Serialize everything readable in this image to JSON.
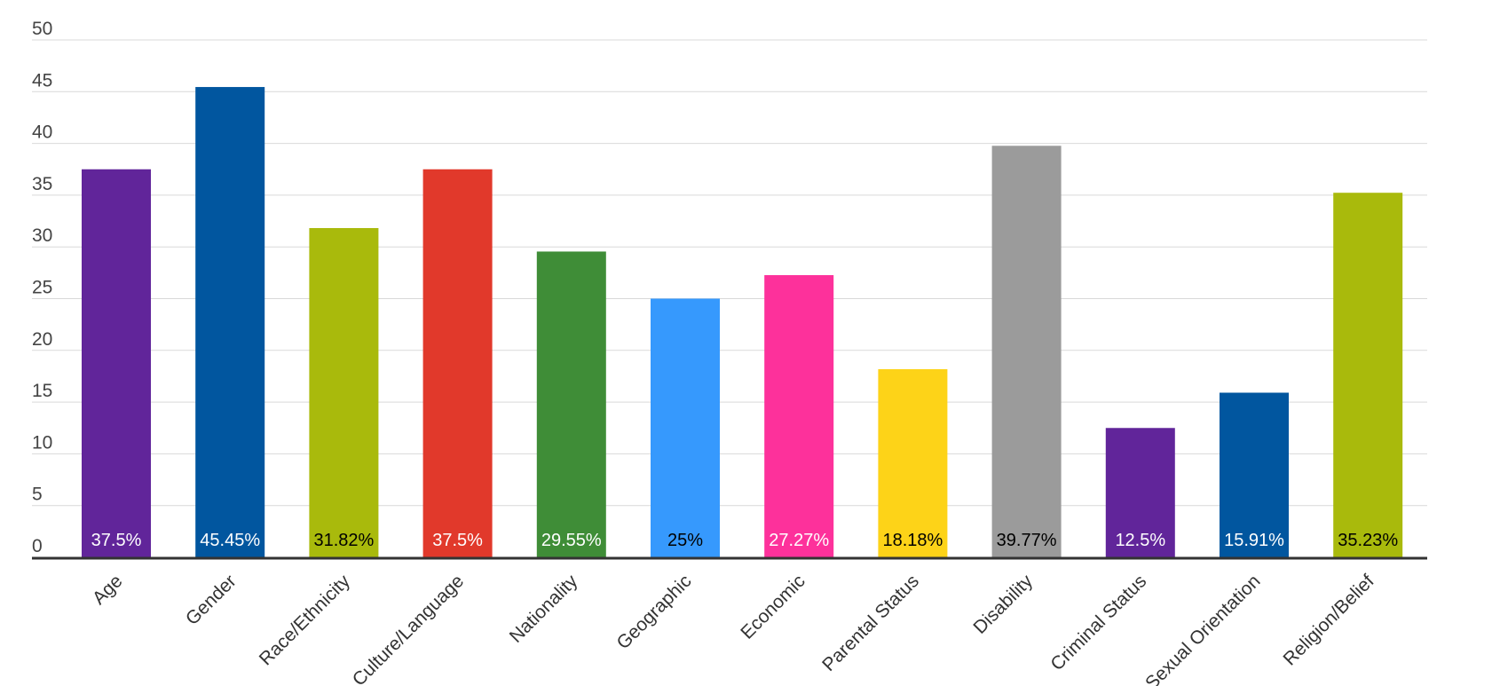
{
  "chart_data": {
    "type": "bar",
    "title": "",
    "xlabel": "",
    "ylabel": "",
    "ylim": [
      0,
      50
    ],
    "yticks": [
      0,
      5,
      10,
      15,
      20,
      25,
      30,
      35,
      40,
      45,
      50
    ],
    "grid": true,
    "legend": "none",
    "categories": [
      "Age",
      "Gender",
      "Race/Ethnicity",
      "Culture/Language",
      "Nationality",
      "Geographic",
      "Economic",
      "Parental Status",
      "Disability",
      "Criminal Status",
      "Sexual Orientation",
      "Religion/Belief"
    ],
    "values": [
      37.5,
      45.45,
      31.82,
      37.5,
      29.55,
      25,
      27.27,
      18.18,
      39.77,
      12.5,
      15.91,
      35.23
    ],
    "data_labels": [
      "37.5%",
      "45.45%",
      "31.82%",
      "37.5%",
      "29.55%",
      "25%",
      "27.27%",
      "18.18%",
      "39.77%",
      "12.5%",
      "15.91%",
      "35.23%"
    ],
    "colors": [
      "#61259a",
      "#01569f",
      "#a9ba0c",
      "#e1392b",
      "#3f8d37",
      "#3699fd",
      "#fd319b",
      "#fdd318",
      "#9b9b9b",
      "#61259a",
      "#01569f",
      "#a9ba0c"
    ],
    "label_colors": [
      "#ffffff",
      "#ffffff",
      "#000000",
      "#ffffff",
      "#ffffff",
      "#000000",
      "#ffffff",
      "#000000",
      "#000000",
      "#ffffff",
      "#ffffff",
      "#000000"
    ]
  }
}
